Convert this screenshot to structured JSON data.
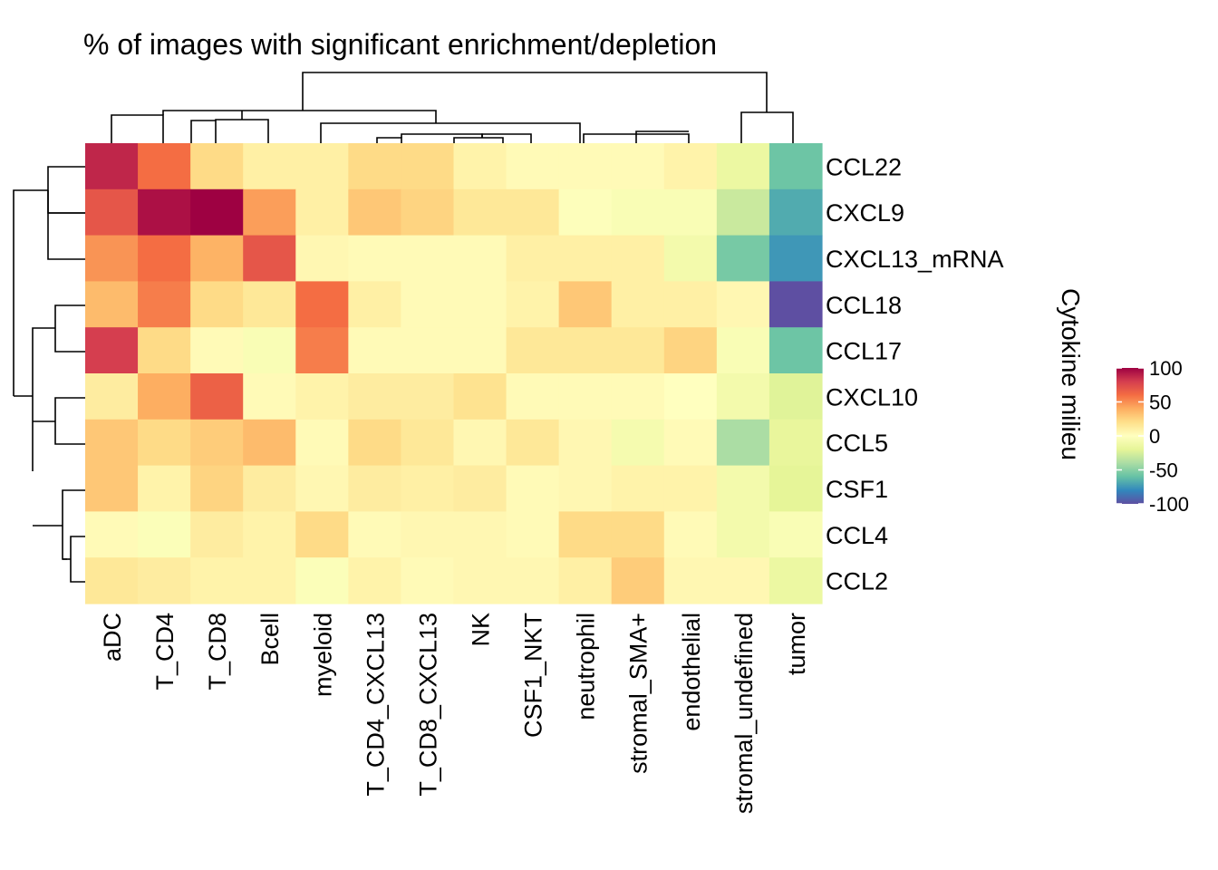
{
  "chart_data": {
    "type": "heatmap",
    "title": "% of images with significant enrichment/depletion",
    "rows": [
      "CCL22",
      "CXCL9",
      "CXCL13_mRNA",
      "CCL18",
      "CCL17",
      "CXCL10",
      "CCL5",
      "CSF1",
      "CCL4",
      "CCL2"
    ],
    "columns": [
      "aDC",
      "T_CD4",
      "T_CD8",
      "Bcell",
      "myeloid",
      "T_CD4_CXCL13",
      "T_CD8_CXCL13",
      "NK",
      "CSF1_NKT",
      "neutrophil",
      "stromal_SMA+",
      "endothelial",
      "stromal_undefined",
      "tumor"
    ],
    "values": [
      [
        88,
        60,
        22,
        10,
        10,
        22,
        22,
        8,
        3,
        3,
        3,
        8,
        -15,
        -58
      ],
      [
        70,
        95,
        100,
        45,
        10,
        30,
        25,
        15,
        15,
        -2,
        -5,
        -5,
        -30,
        -68
      ],
      [
        48,
        60,
        38,
        70,
        5,
        3,
        3,
        3,
        10,
        10,
        10,
        -10,
        -55,
        -75
      ],
      [
        35,
        55,
        22,
        15,
        60,
        10,
        3,
        3,
        8,
        30,
        10,
        10,
        5,
        -100
      ],
      [
        80,
        22,
        3,
        -5,
        55,
        3,
        3,
        3,
        15,
        15,
        15,
        25,
        -5,
        -58
      ],
      [
        12,
        40,
        65,
        3,
        8,
        12,
        12,
        18,
        3,
        3,
        3,
        0,
        -10,
        -22
      ],
      [
        30,
        22,
        28,
        35,
        3,
        22,
        15,
        5,
        15,
        5,
        -8,
        3,
        -40,
        -18
      ],
      [
        30,
        8,
        25,
        12,
        5,
        12,
        10,
        12,
        3,
        5,
        8,
        8,
        -10,
        -20
      ],
      [
        3,
        -3,
        12,
        8,
        22,
        3,
        5,
        5,
        3,
        22,
        22,
        3,
        -10,
        -5
      ],
      [
        15,
        12,
        8,
        8,
        -3,
        8,
        3,
        5,
        5,
        10,
        28,
        5,
        5,
        -15
      ]
    ],
    "legend": {
      "title": "Cytokine milieu",
      "ticks": [
        100,
        50,
        0,
        -50,
        -100
      ],
      "tick_labels": [
        "100",
        "50",
        "0",
        "-50",
        "-100"
      ],
      "range": [
        -100,
        100
      ],
      "placement": "right"
    },
    "color_scale": [
      "#5E4FA2",
      "#3288BD",
      "#66C2A5",
      "#ABDDA4",
      "#E6F598",
      "#FFFFBF",
      "#FEE08B",
      "#FDAE61",
      "#F46D43",
      "#D53E4F",
      "#9E0142"
    ],
    "row_dendrogram": true,
    "column_dendrogram": true,
    "grid": false
  }
}
